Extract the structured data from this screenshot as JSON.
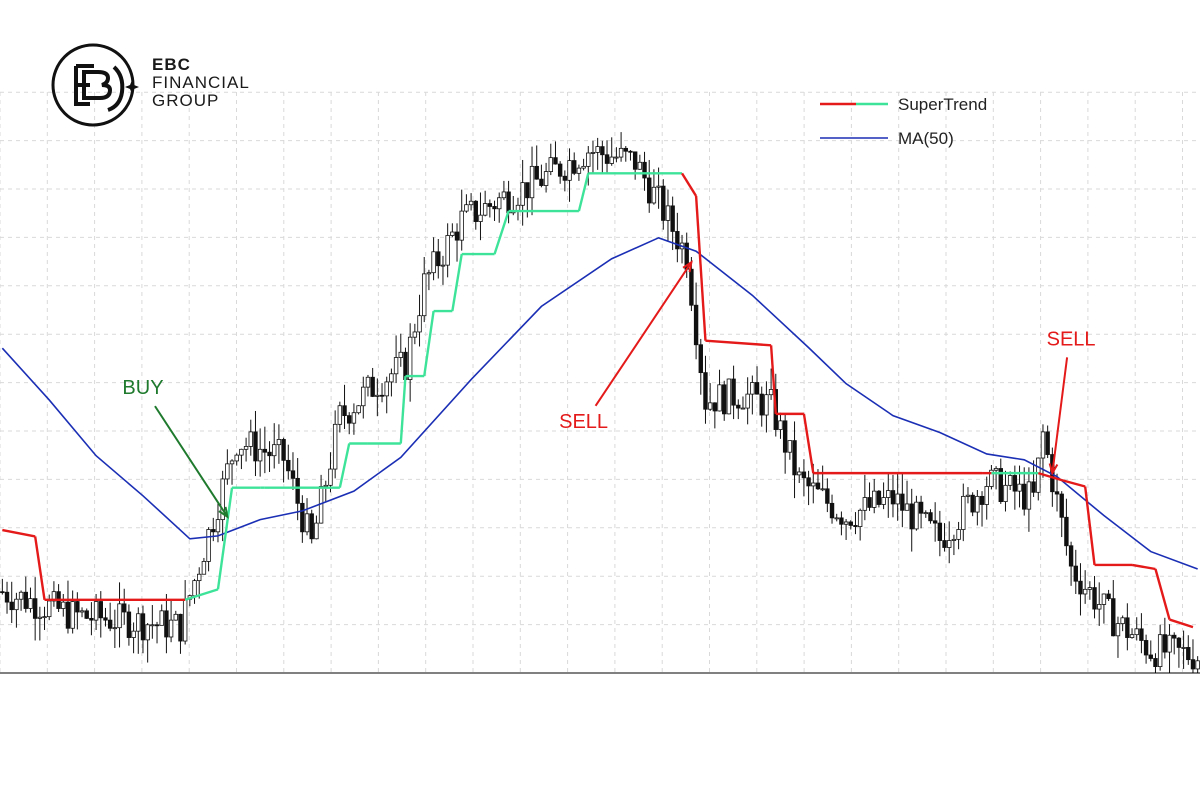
{
  "brand": {
    "line1": "EBC",
    "line2": "FINANCIAL",
    "line3": "GROUP"
  },
  "chart_data": {
    "type": "candlestick",
    "title": "",
    "grid": true,
    "legend_position": "top-right",
    "legend": [
      {
        "label": "SuperTrend",
        "colors": [
          "#e41a1a",
          "#3ee39a"
        ]
      },
      {
        "label": "MA(50)",
        "colors": [
          "#1b2fb5"
        ]
      }
    ],
    "colors": {
      "bull_trend": "#3ee39a",
      "bear_trend": "#e41a1a",
      "ma": "#1b2fb5",
      "buy": "#1f7a2e",
      "sell": "#e41a1a",
      "grid": "#d9d9d9"
    },
    "ylim": [
      0,
      100
    ],
    "candles": [],
    "supertrend": [
      {
        "x": 0,
        "y": 24.6,
        "trend": "down"
      },
      {
        "x": 7,
        "y": 23.5,
        "trend": "down"
      },
      {
        "x": 9,
        "y": 12.6,
        "trend": "down"
      },
      {
        "x": 39,
        "y": 12.6,
        "trend": "up"
      },
      {
        "x": 46,
        "y": 14.4,
        "trend": "up"
      },
      {
        "x": 49,
        "y": 31.9,
        "trend": "up"
      },
      {
        "x": 55,
        "y": 31.9,
        "trend": "up"
      },
      {
        "x": 56,
        "y": 31.9,
        "trend": "up"
      },
      {
        "x": 72,
        "y": 31.9,
        "trend": "up"
      },
      {
        "x": 74,
        "y": 39.5,
        "trend": "up"
      },
      {
        "x": 78,
        "y": 39.5,
        "trend": "up"
      },
      {
        "x": 85,
        "y": 39.5,
        "trend": "up"
      },
      {
        "x": 86,
        "y": 51.1,
        "trend": "up"
      },
      {
        "x": 90,
        "y": 51.1,
        "trend": "up"
      },
      {
        "x": 92,
        "y": 62.3,
        "trend": "up"
      },
      {
        "x": 96,
        "y": 62.3,
        "trend": "up"
      },
      {
        "x": 98,
        "y": 72.1,
        "trend": "up"
      },
      {
        "x": 105,
        "y": 72.1,
        "trend": "up"
      },
      {
        "x": 108,
        "y": 79.5,
        "trend": "up"
      },
      {
        "x": 123,
        "y": 79.5,
        "trend": "up"
      },
      {
        "x": 125,
        "y": 86.0,
        "trend": "up"
      },
      {
        "x": 145,
        "y": 86.0,
        "trend": "down"
      },
      {
        "x": 148,
        "y": 82.1,
        "trend": "down"
      },
      {
        "x": 150,
        "y": 57.2,
        "trend": "down"
      },
      {
        "x": 164,
        "y": 56.4,
        "trend": "down"
      },
      {
        "x": 165,
        "y": 44.6,
        "trend": "down"
      },
      {
        "x": 171,
        "y": 44.6,
        "trend": "down"
      },
      {
        "x": 173,
        "y": 34.4,
        "trend": "down"
      },
      {
        "x": 209,
        "y": 34.4,
        "trend": "down"
      },
      {
        "x": 211,
        "y": 34.4,
        "trend": "up"
      },
      {
        "x": 220,
        "y": 34.4,
        "trend": "up"
      },
      {
        "x": 221,
        "y": 34.4,
        "trend": "down"
      },
      {
        "x": 226,
        "y": 33.2,
        "trend": "down"
      },
      {
        "x": 231,
        "y": 32.1,
        "trend": "down"
      },
      {
        "x": 233,
        "y": 18.6,
        "trend": "down"
      },
      {
        "x": 241,
        "y": 18.6,
        "trend": "down"
      },
      {
        "x": 246,
        "y": 17.9,
        "trend": "down"
      },
      {
        "x": 249,
        "y": 9.2,
        "trend": "down"
      },
      {
        "x": 254,
        "y": 7.9,
        "trend": "down"
      }
    ],
    "ma50": [
      {
        "x": 0,
        "y": 55.9
      },
      {
        "x": 10,
        "y": 47.0
      },
      {
        "x": 20,
        "y": 37.4
      },
      {
        "x": 30,
        "y": 30.5
      },
      {
        "x": 40,
        "y": 23.1
      },
      {
        "x": 46,
        "y": 23.6
      },
      {
        "x": 55,
        "y": 26.4
      },
      {
        "x": 64,
        "y": 27.9
      },
      {
        "x": 75,
        "y": 31.3
      },
      {
        "x": 85,
        "y": 37.1
      },
      {
        "x": 100,
        "y": 50.5
      },
      {
        "x": 115,
        "y": 63.1
      },
      {
        "x": 130,
        "y": 71.3
      },
      {
        "x": 140,
        "y": 74.9
      },
      {
        "x": 148,
        "y": 72.6
      },
      {
        "x": 160,
        "y": 65.0
      },
      {
        "x": 172,
        "y": 56.0
      },
      {
        "x": 180,
        "y": 49.8
      },
      {
        "x": 190,
        "y": 44.3
      },
      {
        "x": 200,
        "y": 41.4
      },
      {
        "x": 210,
        "y": 37.7
      },
      {
        "x": 218,
        "y": 36.7
      },
      {
        "x": 225,
        "y": 33.8
      },
      {
        "x": 235,
        "y": 27.1
      },
      {
        "x": 245,
        "y": 20.9
      },
      {
        "x": 255,
        "y": 17.9
      }
    ],
    "signals": [
      {
        "label": "BUY",
        "type": "buy",
        "text_x": 30,
        "text_y": 48.0,
        "target_x": 48,
        "target_y": 26.9
      },
      {
        "label": "SELL",
        "type": "sell",
        "text_x": 124,
        "text_y": 42.2,
        "target_x": 147,
        "target_y": 70.7
      },
      {
        "label": "SELL",
        "type": "sell",
        "text_x": 228,
        "text_y": 56.4,
        "target_x": 224,
        "target_y": 34.4
      }
    ]
  }
}
